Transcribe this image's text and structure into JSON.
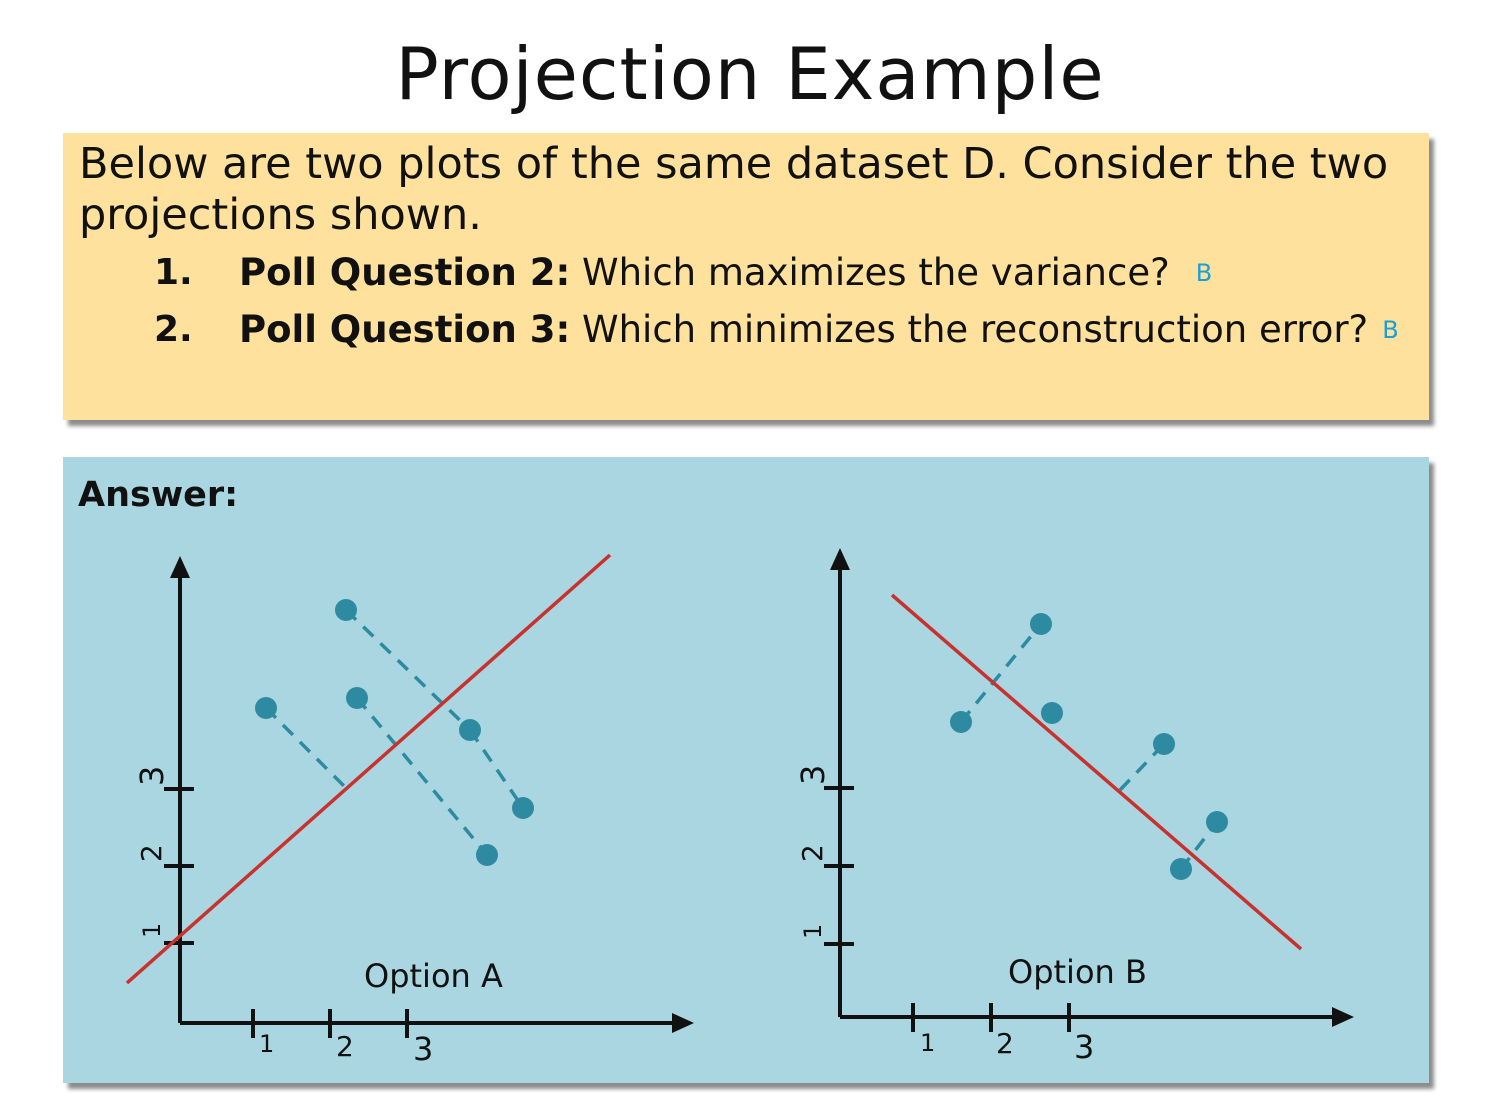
{
  "slide": {
    "title": "Projection Example"
  },
  "question_box": {
    "intro": "Below are two plots of the same dataset D. Consider the two projections shown.",
    "items": [
      {
        "number": "1.",
        "label": "Poll Question 2:",
        "text": " Which maximizes the variance?",
        "answer": "B"
      },
      {
        "number": "2.",
        "label": "Poll Question 3:",
        "text": " Which minimizes the reconstruction error?",
        "answer": "B"
      }
    ]
  },
  "answer_box": {
    "label": "Answer:"
  },
  "plots": [
    {
      "caption": "Option A",
      "x_ticks": [
        "1",
        "2",
        "3"
      ],
      "y_ticks": [
        "1",
        "2",
        "3"
      ]
    },
    {
      "caption": "Option B",
      "x_ticks": [
        "1",
        "2",
        "3"
      ],
      "y_ticks": [
        "1",
        "2",
        "3"
      ]
    }
  ],
  "colors": {
    "question_bg": "#fde19c",
    "answer_bg": "#a9d6e0",
    "projection_line": "#c8312d",
    "points": "#2e8aa0",
    "answer_letter": "#1b9fd6"
  }
}
